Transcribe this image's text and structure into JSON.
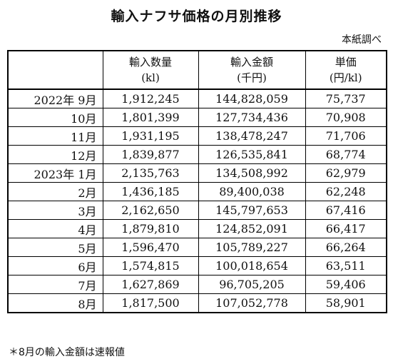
{
  "title": "輸入ナフサ価格の月別推移",
  "source": "本紙調べ",
  "table": {
    "headers": [
      {
        "label": "",
        "unit": ""
      },
      {
        "label": "輸入数量",
        "unit": "(kl)"
      },
      {
        "label": "輸入金額",
        "unit": "(千円)"
      },
      {
        "label": "単価",
        "unit": "(円/kl)"
      }
    ],
    "rows": [
      {
        "period": "2022年 9月",
        "volume": "1,912,245",
        "amount": "144,828,059",
        "unit_price": "75,737"
      },
      {
        "period": "10月",
        "volume": "1,801,399",
        "amount": "127,734,436",
        "unit_price": "70,908"
      },
      {
        "period": "11月",
        "volume": "1,931,195",
        "amount": "138,478,247",
        "unit_price": "71,706"
      },
      {
        "period": "12月",
        "volume": "1,839,877",
        "amount": "126,535,841",
        "unit_price": "68,774"
      },
      {
        "period": "2023年 1月",
        "volume": "2,135,763",
        "amount": "134,508,992",
        "unit_price": "62,979"
      },
      {
        "period": "2月",
        "volume": "1,436,185",
        "amount": "89,400,038",
        "unit_price": "62,248"
      },
      {
        "period": "3月",
        "volume": "2,162,650",
        "amount": "145,797,653",
        "unit_price": "67,416"
      },
      {
        "period": "4月",
        "volume": "1,879,810",
        "amount": "124,852,091",
        "unit_price": "66,417"
      },
      {
        "period": "5月",
        "volume": "1,596,470",
        "amount": "105,789,227",
        "unit_price": "66,264"
      },
      {
        "period": "6月",
        "volume": "1,574,815",
        "amount": "100,018,654",
        "unit_price": "63,511"
      },
      {
        "period": "7月",
        "volume": "1,627,869",
        "amount": "96,705,205",
        "unit_price": "59,406"
      },
      {
        "period": "8月",
        "volume": "1,817,500",
        "amount": "107,052,778",
        "unit_price": "58,901"
      }
    ]
  },
  "footnote": "＊8月の輸入金額は速報値"
}
